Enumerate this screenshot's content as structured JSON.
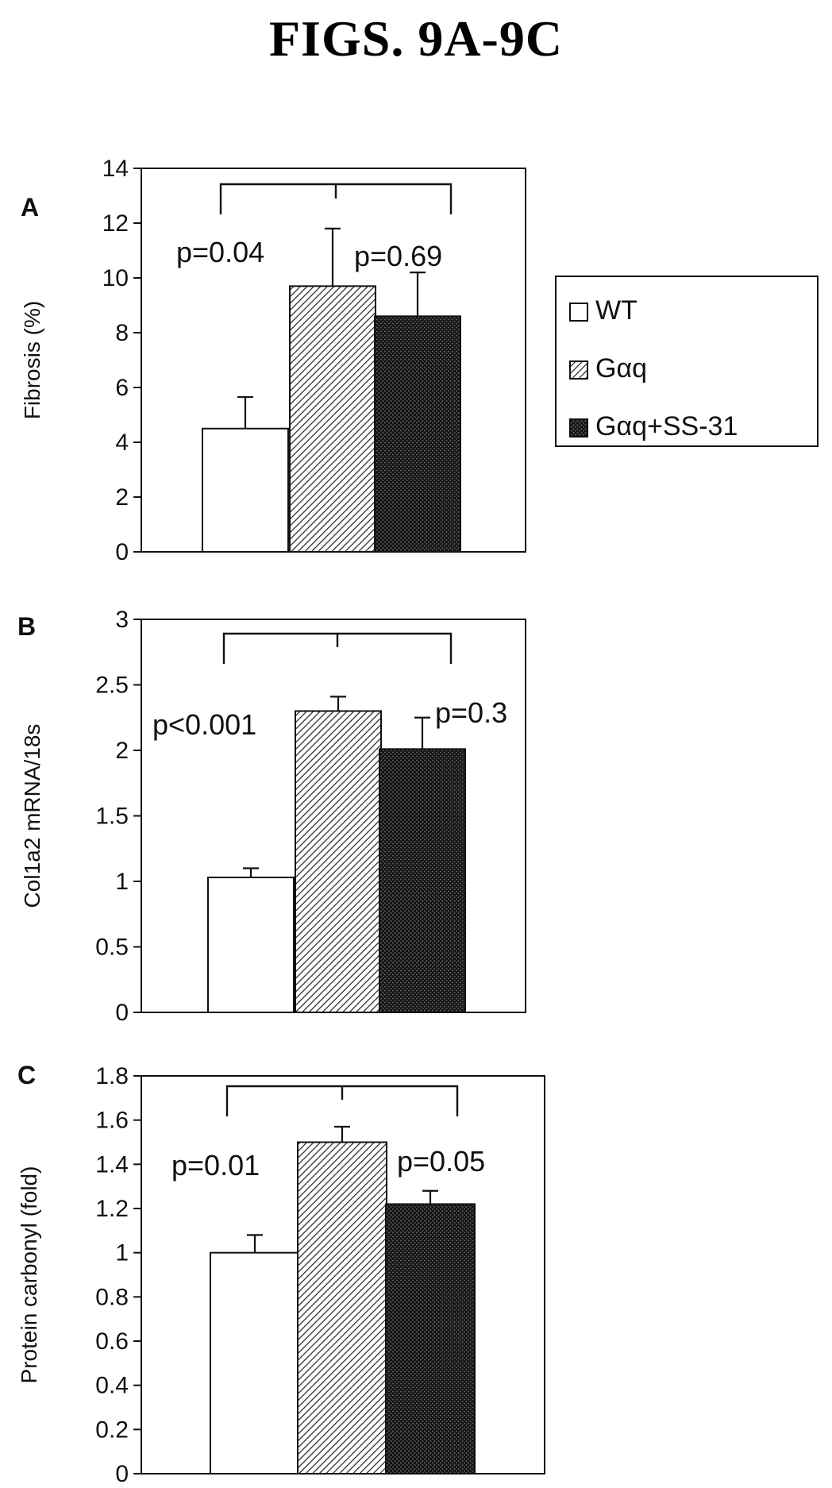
{
  "title": "FIGS. 9A-9C",
  "legend": {
    "entries": [
      {
        "label": "WT",
        "pattern": "white"
      },
      {
        "label": "Gαq",
        "pattern": "diag-light"
      },
      {
        "label": "Gαq+SS-31",
        "pattern": "crosshatch-dark"
      }
    ]
  },
  "colors": {
    "axis": "#111111",
    "bar_outline": "#111111",
    "background": "#ffffff"
  },
  "chart_data": [
    {
      "type": "bar",
      "panel": "A",
      "ylabel": "Fibrosis (%)",
      "ylim": [
        0,
        14
      ],
      "yticks": [
        0,
        2,
        4,
        6,
        8,
        10,
        12,
        14
      ],
      "categories": [
        "WT",
        "Gαq",
        "Gαq+SS-31"
      ],
      "values": [
        4.5,
        9.7,
        8.6
      ],
      "errors": [
        1.15,
        2.1,
        1.6
      ],
      "annotations": [
        {
          "text": "p=0.04",
          "between": [
            "WT",
            "Gαq"
          ]
        },
        {
          "text": "p=0.69",
          "between": [
            "Gαq",
            "Gαq+SS-31"
          ]
        }
      ],
      "grid": false,
      "legend_position": "right"
    },
    {
      "type": "bar",
      "panel": "B",
      "ylabel": "Col1a2 mRNA/18s",
      "ylim": [
        0,
        3
      ],
      "yticks": [
        0,
        0.5,
        1,
        1.5,
        2,
        2.5,
        3
      ],
      "categories": [
        "WT",
        "Gαq",
        "Gαq+SS-31"
      ],
      "values": [
        1.03,
        2.3,
        2.01
      ],
      "errors": [
        0.07,
        0.11,
        0.24
      ],
      "annotations": [
        {
          "text": "p<0.001",
          "between": [
            "WT",
            "Gαq"
          ]
        },
        {
          "text": "p=0.3",
          "between": [
            "Gαq",
            "Gαq+SS-31"
          ]
        }
      ],
      "grid": false
    },
    {
      "type": "bar",
      "panel": "C",
      "ylabel": "Protein carbonyl (fold)",
      "ylim": [
        0,
        1.8
      ],
      "yticks": [
        0,
        0.2,
        0.4,
        0.6,
        0.8,
        1,
        1.2,
        1.4,
        1.6,
        1.8
      ],
      "categories": [
        "WT",
        "Gαq",
        "Gαq+SS-31"
      ],
      "values": [
        1.0,
        1.5,
        1.22
      ],
      "errors": [
        0.08,
        0.07,
        0.06
      ],
      "annotations": [
        {
          "text": "p=0.01",
          "between": [
            "WT",
            "Gαq"
          ]
        },
        {
          "text": "p=0.05",
          "between": [
            "Gαq",
            "Gαq+SS-31"
          ]
        }
      ],
      "grid": false
    }
  ]
}
